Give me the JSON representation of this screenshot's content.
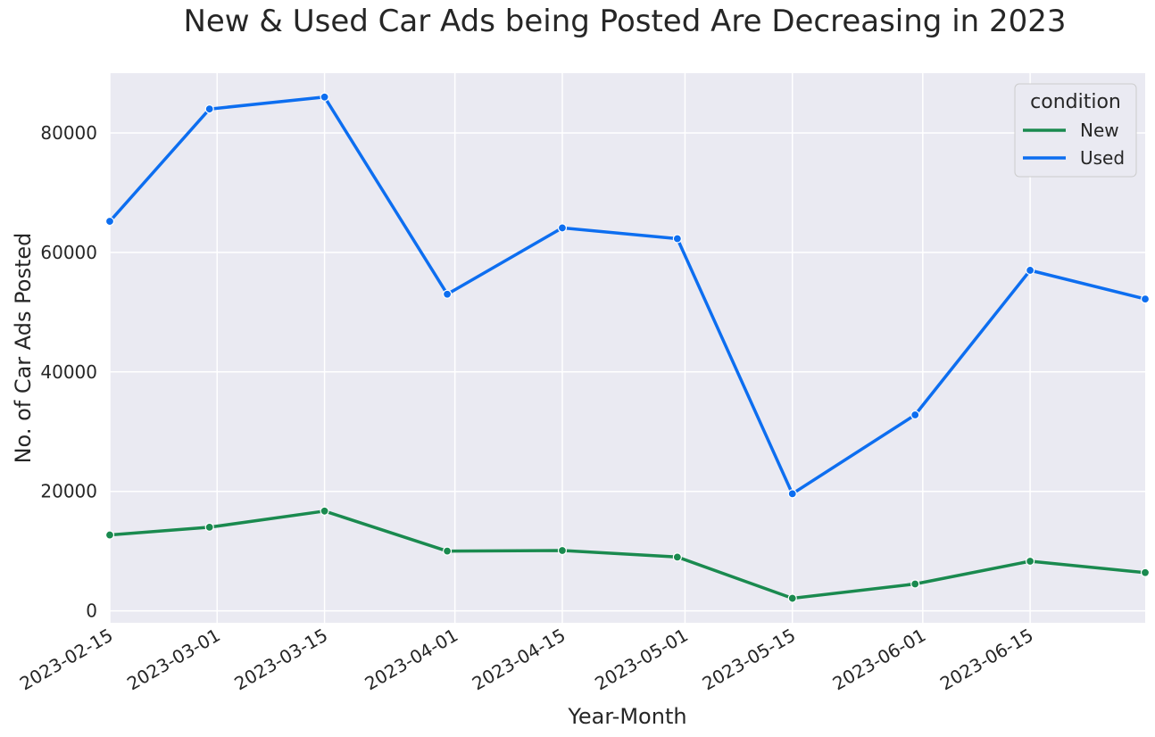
{
  "chart_data": {
    "type": "line",
    "title": "New & Used Car Ads being Posted Are Decreasing in 2023",
    "xlabel": "Year-Month",
    "ylabel": "No. of Car Ads Posted",
    "x_ticks": [
      "2023-02-15",
      "2023-03-01",
      "2023-03-15",
      "2023-04-01",
      "2023-04-15",
      "2023-05-01",
      "2023-05-15",
      "2023-06-01",
      "2023-06-15"
    ],
    "y_ticks": [
      "0",
      "20000",
      "40000",
      "60000",
      "80000"
    ],
    "xlim": [
      "2023-02-15",
      "2023-06-30"
    ],
    "ylim": [
      -2000,
      90000
    ],
    "grid": true,
    "background": "#eaeaf2",
    "legend": {
      "title": "condition",
      "placement": "top-right"
    },
    "x": [
      "2023-02-15",
      "2023-02-28",
      "2023-03-15",
      "2023-03-31",
      "2023-04-15",
      "2023-04-30",
      "2023-05-15",
      "2023-05-31",
      "2023-06-15",
      "2023-06-30"
    ],
    "series": [
      {
        "name": "New",
        "color": "#1a8a4f",
        "values": [
          12700,
          14000,
          16700,
          10000,
          10100,
          9000,
          2100,
          4500,
          8300,
          6400
        ]
      },
      {
        "name": "Used",
        "color": "#0d6ef0",
        "values": [
          65200,
          84000,
          86000,
          53000,
          64100,
          62300,
          19600,
          32800,
          57000,
          52200
        ]
      }
    ]
  }
}
